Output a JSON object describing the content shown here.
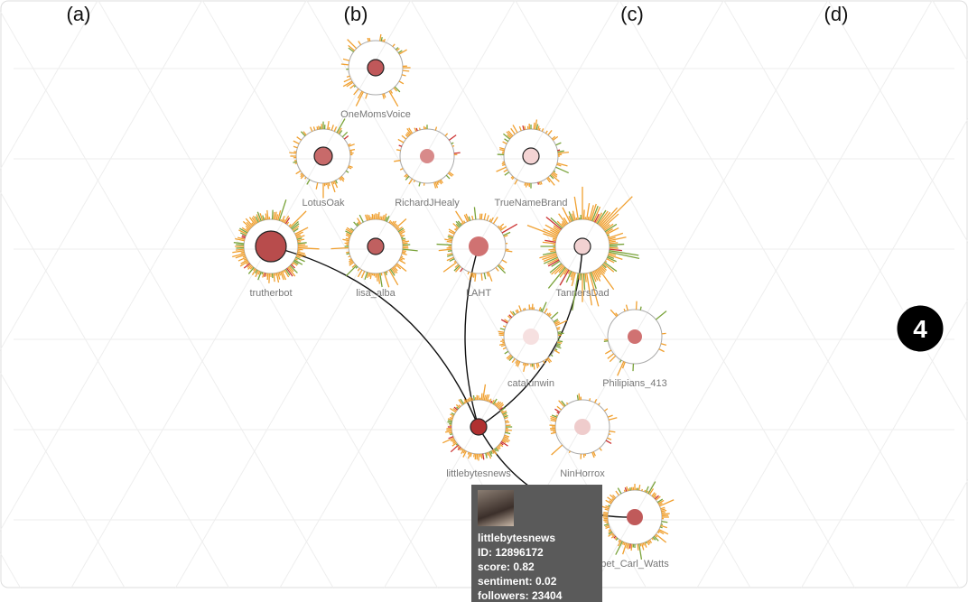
{
  "column_labels": [
    "(a)",
    "(b)",
    "(c)",
    "(d)"
  ],
  "nodes": [
    {
      "label": "OneMomsVoice"
    },
    {
      "label": "LotusOak"
    },
    {
      "label": "RichardJHealy"
    },
    {
      "label": "TrueNameBrand"
    },
    {
      "label": "trutherbot"
    },
    {
      "label": "lisa_alba"
    },
    {
      "label": "LAHT"
    },
    {
      "label": "TannersDad"
    },
    {
      "label": "catalunwin"
    },
    {
      "label": "Philipians_413"
    },
    {
      "label": "littlebytesnews"
    },
    {
      "label": "NinHorrox"
    },
    {
      "label": "bet_Carl_Watts"
    }
  ],
  "step_badge": "4",
  "tooltip": {
    "name": "littlebytesnews",
    "lines": [
      "ID: 12896172",
      "score: 0.82",
      "sentiment: 0.02",
      "followers: 23404"
    ]
  }
}
